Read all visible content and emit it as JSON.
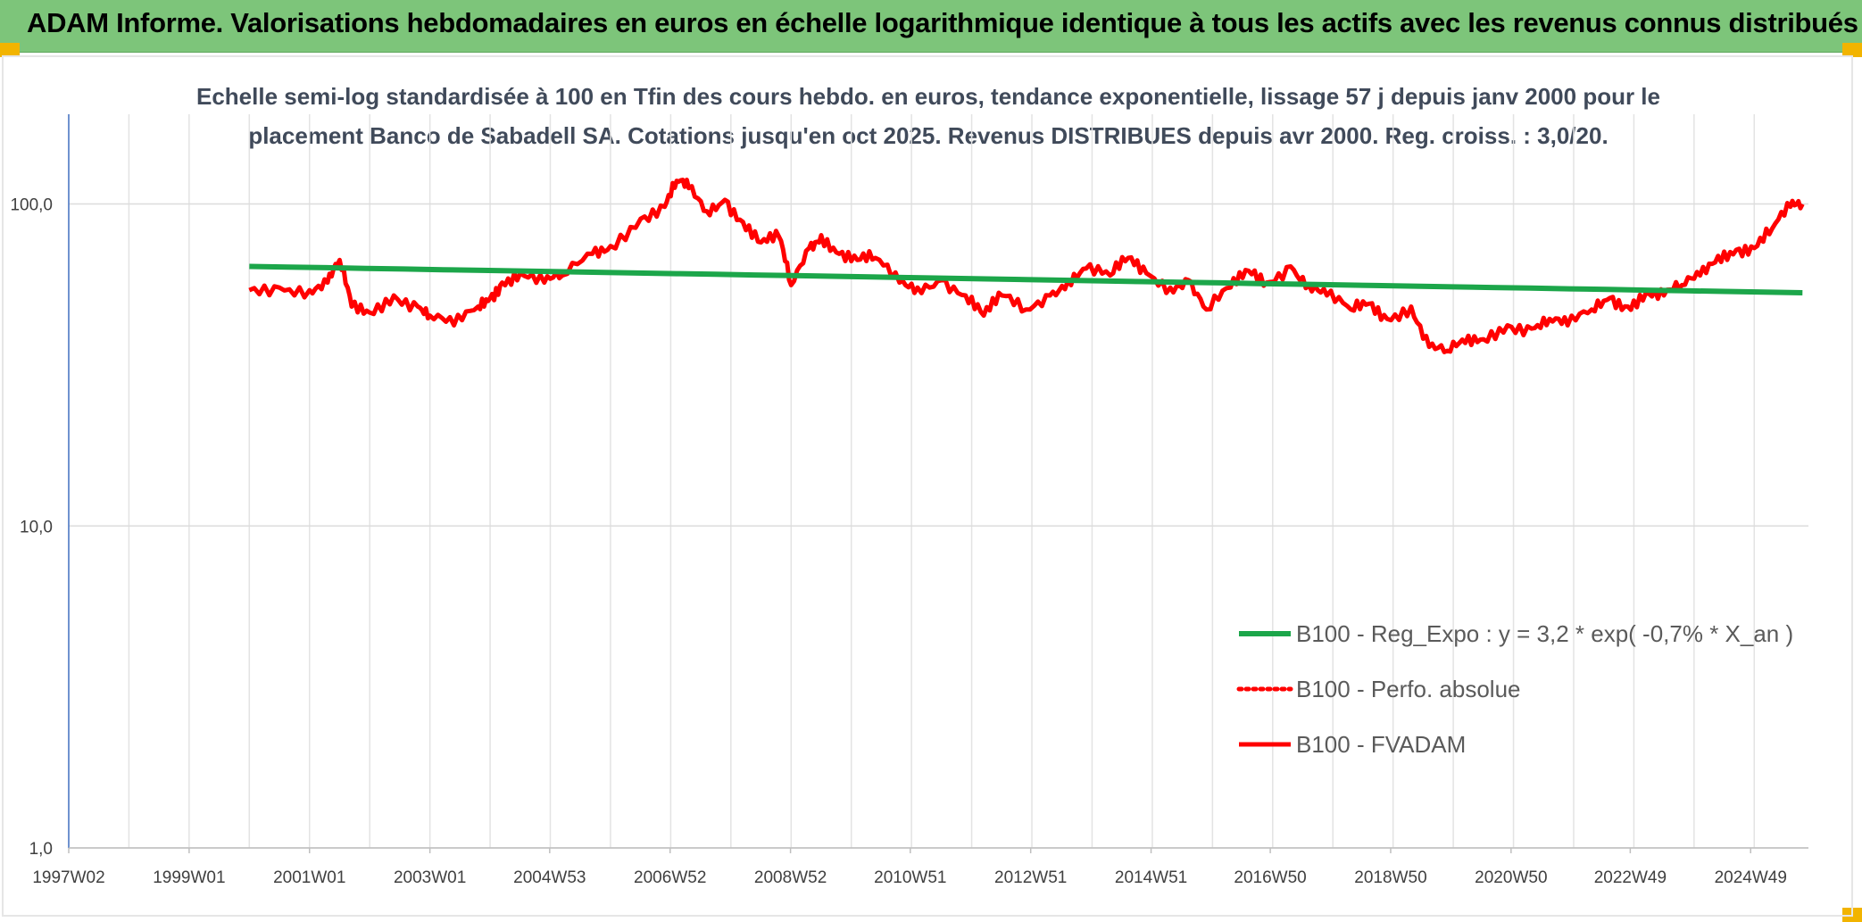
{
  "header": {
    "title": "ADAM Informe. Valorisations hebdomadaires en euros en échelle logarithmique identique à tous les actifs avec les revenus connus distribués"
  },
  "chart_data": {
    "type": "line",
    "title_line1": "Echelle semi-log standardisée à 100 en Tfin des cours hebdo. en euros, tendance exponentielle, lissage 57 j depuis janv 2000 pour le",
    "title_line2": "placement Banco de Sabadell SA. Cotations jusqu'en oct 2025. Revenus DISTRIBUES depuis avr 2000. Reg. croiss. : 3,0/20.",
    "y_scale": "log",
    "ylim": [
      1,
      190
    ],
    "y_ticks": [
      {
        "value": 1,
        "label": "1,0"
      },
      {
        "value": 10,
        "label": "10,0"
      },
      {
        "value": 100,
        "label": "100,0"
      }
    ],
    "xlim": [
      1997.0,
      2025.9
    ],
    "x_ticks": [
      {
        "value": 1997.0,
        "label": "1997W02"
      },
      {
        "value": 1999.0,
        "label": "1999W01"
      },
      {
        "value": 2001.0,
        "label": "2001W01"
      },
      {
        "value": 2003.0,
        "label": "2003W01"
      },
      {
        "value": 2004.99,
        "label": "2004W53"
      },
      {
        "value": 2006.99,
        "label": "2006W52"
      },
      {
        "value": 2008.99,
        "label": "2008W52"
      },
      {
        "value": 2010.98,
        "label": "2010W51"
      },
      {
        "value": 2012.98,
        "label": "2012W51"
      },
      {
        "value": 2014.98,
        "label": "2014W51"
      },
      {
        "value": 2016.96,
        "label": "2016W50"
      },
      {
        "value": 2018.96,
        "label": "2018W50"
      },
      {
        "value": 2020.96,
        "label": "2020W50"
      },
      {
        "value": 2022.94,
        "label": "2022W49"
      },
      {
        "value": 2024.94,
        "label": "2024W49"
      }
    ],
    "legend_position": "bottom-right",
    "series": [
      {
        "name": "B100 - Reg_Expo : y = 3,2 * exp( -0,7% *  X_an )",
        "color": "#1ca64a",
        "style": "solid-thick",
        "x": [
          2000.0,
          2025.8
        ],
        "y": [
          64,
          53
        ]
      },
      {
        "name": "B100 - Perfo. absolue",
        "color": "#ff0000",
        "style": "dotted",
        "x": [],
        "y": []
      },
      {
        "name": "B100 - FVADAM",
        "color": "#ff0000",
        "style": "solid",
        "x": [
          2000.0,
          2000.5,
          2001.0,
          2001.3,
          2001.5,
          2001.7,
          2002.0,
          2002.4,
          2002.8,
          2003.0,
          2003.4,
          2003.8,
          2004.0,
          2004.2,
          2004.5,
          2004.9,
          2005.2,
          2005.7,
          2006.0,
          2006.5,
          2006.9,
          2007.1,
          2007.3,
          2007.6,
          2007.9,
          2008.2,
          2008.5,
          2008.8,
          2009.0,
          2009.3,
          2009.5,
          2009.8,
          2010.1,
          2010.4,
          2010.8,
          2011.1,
          2011.5,
          2011.9,
          2012.2,
          2012.5,
          2012.9,
          2013.3,
          2013.6,
          2013.9,
          2014.3,
          2014.6,
          2014.9,
          2015.3,
          2015.6,
          2015.9,
          2016.3,
          2016.6,
          2016.9,
          2017.3,
          2017.6,
          2017.9,
          2018.3,
          2018.6,
          2018.9,
          2019.3,
          2019.6,
          2019.9,
          2020.2,
          2020.5,
          2020.9,
          2021.3,
          2021.6,
          2021.9,
          2022.3,
          2022.6,
          2022.9,
          2023.2,
          2023.5,
          2023.8,
          2024.1,
          2024.4,
          2024.7,
          2025.0,
          2025.3,
          2025.6,
          2025.8
        ],
        "y": [
          54,
          55,
          54,
          57,
          67,
          48,
          46,
          52,
          48,
          45,
          42,
          48,
          51,
          57,
          61,
          57,
          60,
          70,
          74,
          90,
          98,
          118,
          112,
          95,
          103,
          88,
          76,
          79,
          56,
          73,
          80,
          70,
          67,
          68,
          57,
          55,
          58,
          52,
          45,
          52,
          47,
          52,
          58,
          63,
          60,
          68,
          61,
          55,
          58,
          47,
          55,
          62,
          57,
          64,
          56,
          52,
          47,
          49,
          44,
          48,
          36,
          35,
          37,
          38,
          42,
          41,
          44,
          42,
          47,
          51,
          48,
          53,
          52,
          56,
          60,
          69,
          72,
          73,
          84,
          98,
          100
        ]
      }
    ]
  }
}
